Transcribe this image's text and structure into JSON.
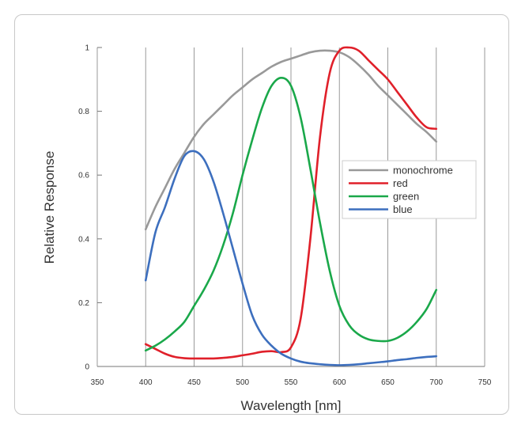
{
  "chart_data": {
    "type": "line",
    "title": "",
    "xlabel": "Wavelength [nm]",
    "ylabel": "Relative Response",
    "xlim": [
      350,
      750
    ],
    "ylim": [
      0,
      1
    ],
    "x_ticks": [
      350,
      400,
      450,
      500,
      550,
      600,
      650,
      700,
      750
    ],
    "y_ticks": [
      0,
      0.2,
      0.4,
      0.6,
      0.8,
      1
    ],
    "y_tick_labels": [
      "0",
      "0.2",
      "0.4",
      "0.6",
      "0.8",
      "1"
    ],
    "grid": "vertical",
    "legend_position": "right",
    "x": [
      400,
      410,
      420,
      430,
      440,
      450,
      460,
      470,
      480,
      490,
      500,
      510,
      520,
      530,
      540,
      550,
      560,
      570,
      580,
      590,
      600,
      610,
      620,
      630,
      640,
      650,
      660,
      670,
      680,
      690,
      700
    ],
    "series": [
      {
        "name": "monochrome",
        "color": "#999999",
        "values": [
          0.43,
          0.5,
          0.56,
          0.62,
          0.67,
          0.72,
          0.76,
          0.79,
          0.82,
          0.85,
          0.875,
          0.9,
          0.92,
          0.94,
          0.955,
          0.965,
          0.975,
          0.985,
          0.99,
          0.99,
          0.985,
          0.97,
          0.945,
          0.915,
          0.88,
          0.85,
          0.82,
          0.79,
          0.76,
          0.735,
          0.705
        ]
      },
      {
        "name": "red",
        "color": "#e0202a",
        "values": [
          0.07,
          0.055,
          0.04,
          0.03,
          0.026,
          0.025,
          0.025,
          0.025,
          0.027,
          0.03,
          0.035,
          0.04,
          0.046,
          0.048,
          0.045,
          0.06,
          0.15,
          0.4,
          0.72,
          0.92,
          0.99,
          1.0,
          0.99,
          0.96,
          0.93,
          0.9,
          0.86,
          0.82,
          0.78,
          0.75,
          0.745
        ]
      },
      {
        "name": "green",
        "color": "#1aa84a",
        "values": [
          0.05,
          0.065,
          0.085,
          0.11,
          0.14,
          0.19,
          0.24,
          0.3,
          0.38,
          0.48,
          0.6,
          0.71,
          0.81,
          0.88,
          0.905,
          0.88,
          0.78,
          0.62,
          0.45,
          0.3,
          0.19,
          0.13,
          0.1,
          0.085,
          0.08,
          0.08,
          0.09,
          0.11,
          0.14,
          0.18,
          0.24
        ]
      },
      {
        "name": "blue",
        "color": "#3d6fbe",
        "values": [
          0.27,
          0.42,
          0.5,
          0.59,
          0.66,
          0.675,
          0.65,
          0.58,
          0.48,
          0.37,
          0.26,
          0.16,
          0.1,
          0.065,
          0.04,
          0.025,
          0.015,
          0.01,
          0.007,
          0.005,
          0.004,
          0.005,
          0.007,
          0.01,
          0.013,
          0.016,
          0.02,
          0.023,
          0.027,
          0.03,
          0.032
        ]
      }
    ]
  }
}
